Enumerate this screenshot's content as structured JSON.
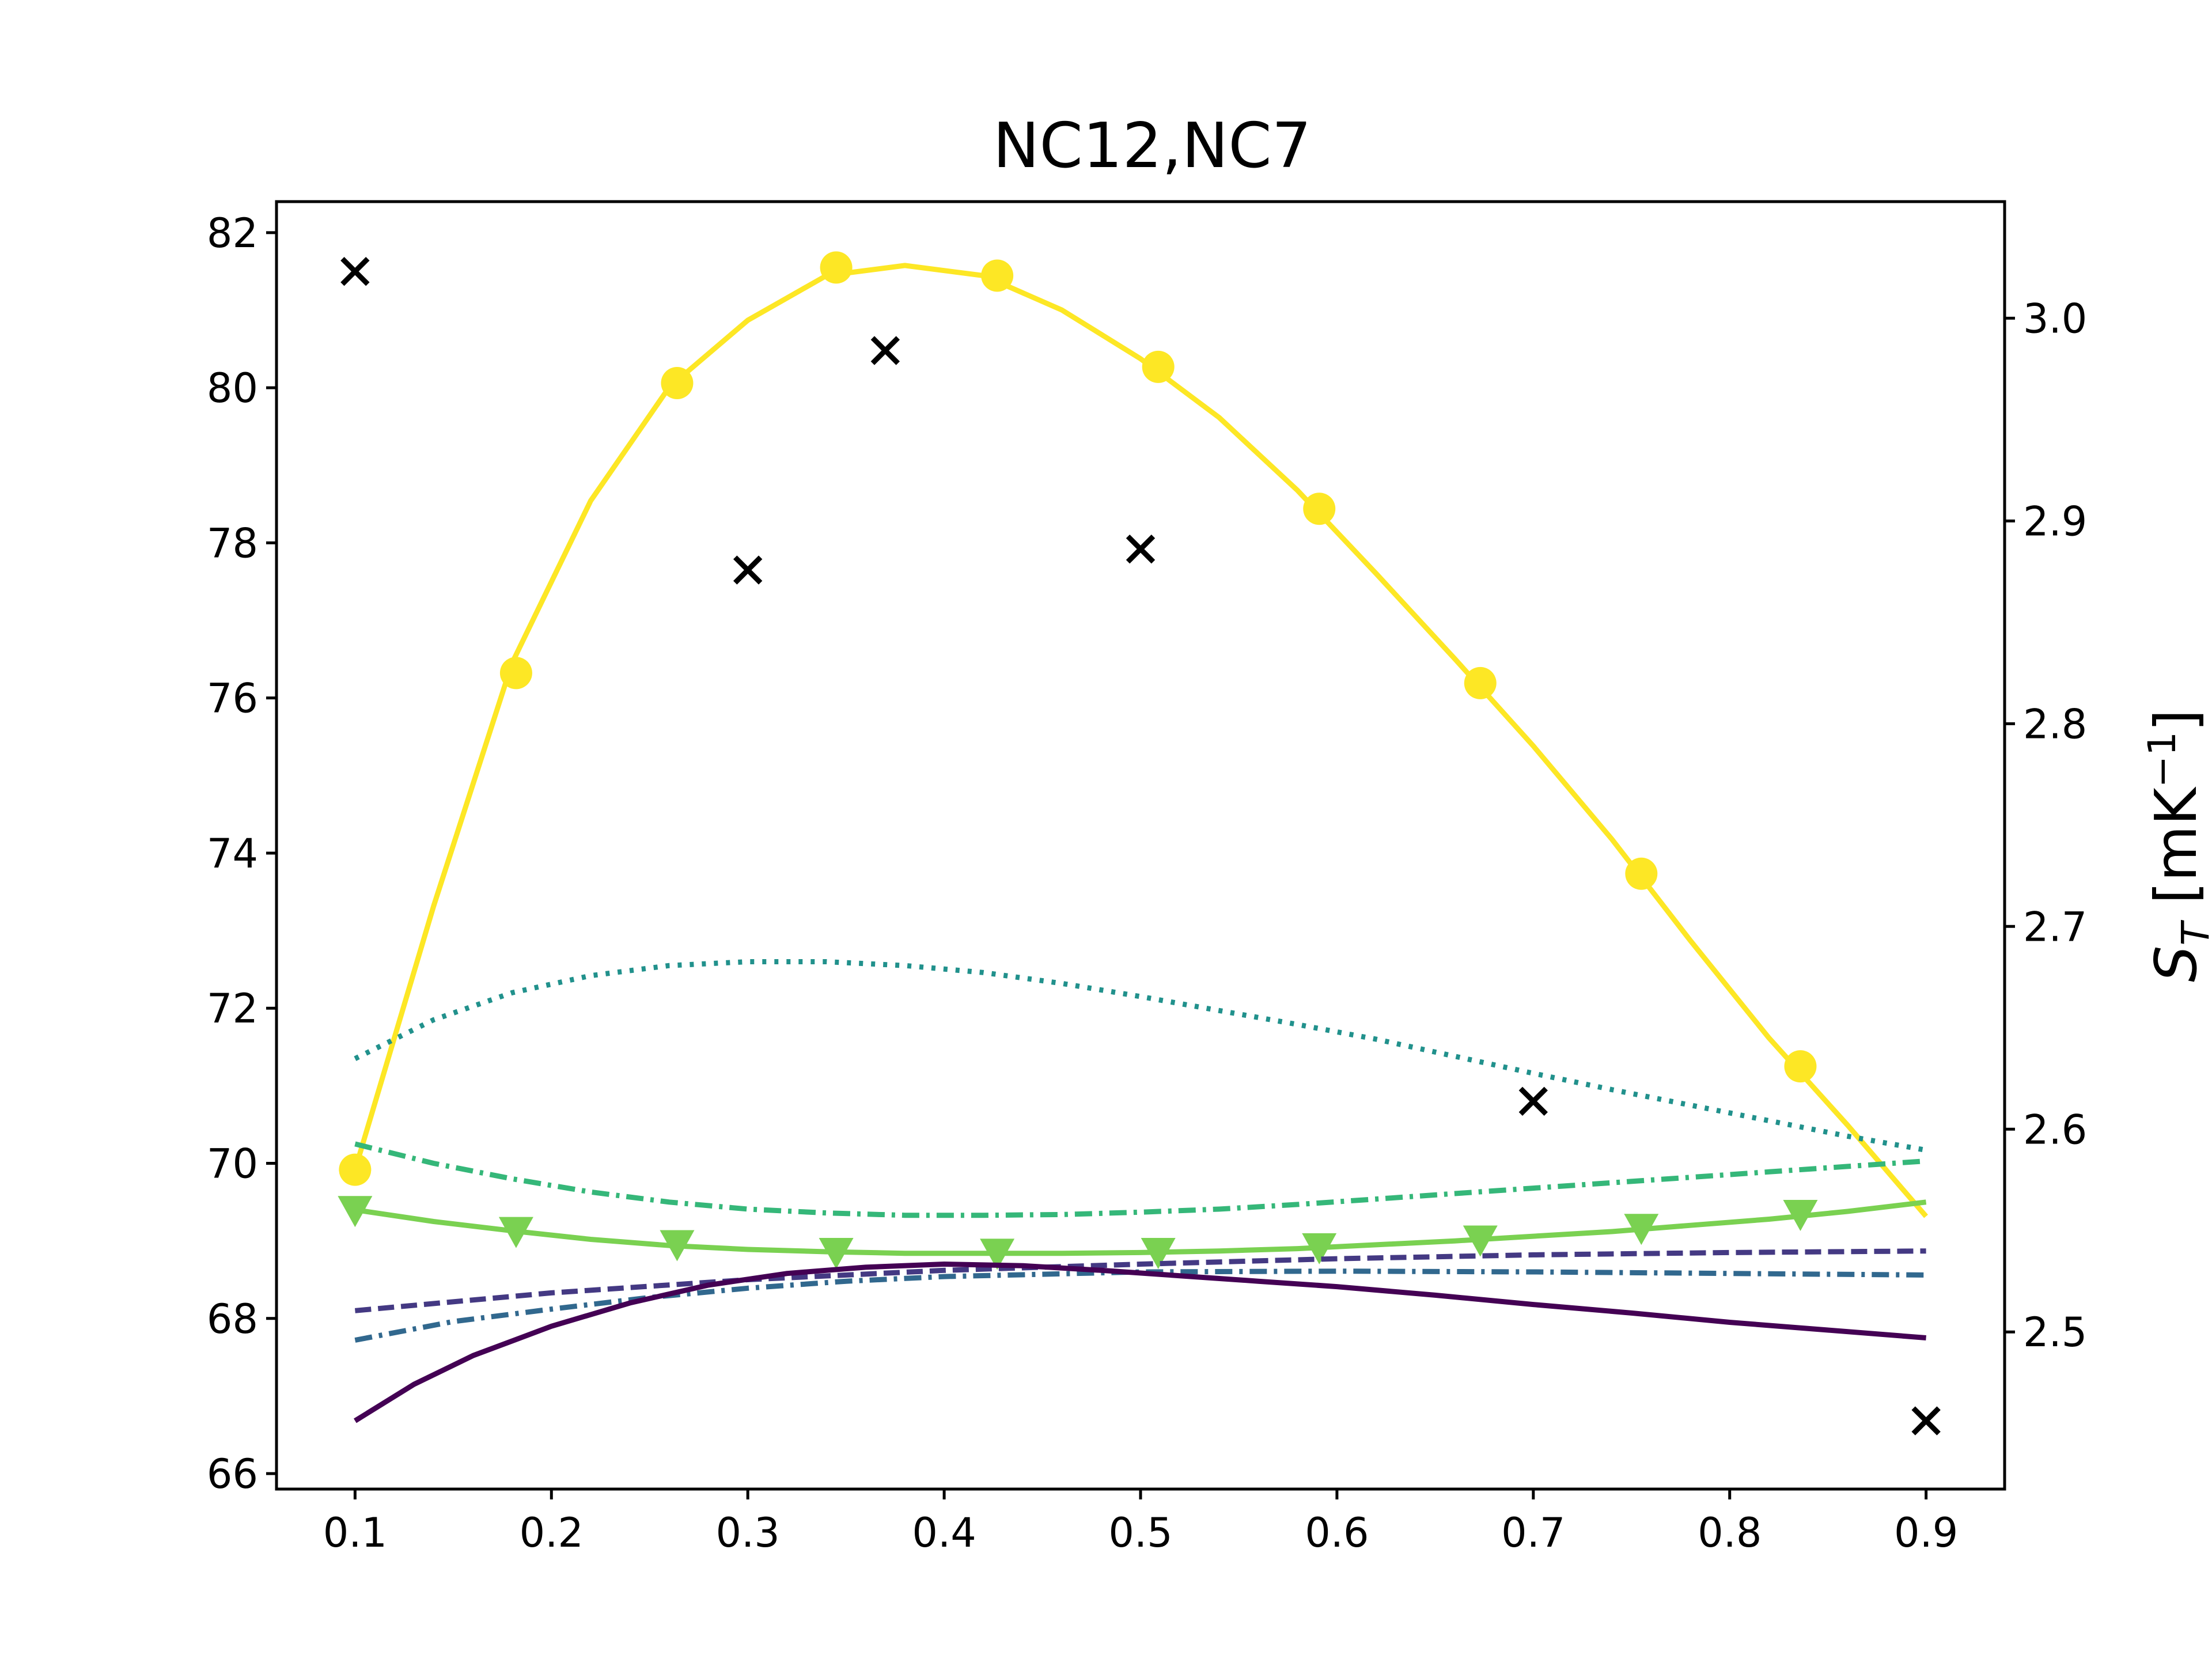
{
  "chart_data": {
    "type": "line",
    "title": "NC12,NC7",
    "xlabel": "",
    "ylabel": "",
    "ylabel_right": "S_T [mK^-1]",
    "ylabel_right_parts": {
      "main": "S",
      "sub": "T",
      "bracket_open": " [mK",
      "sup": "−1",
      "bracket_close": "]"
    },
    "xlim": [
      0.06,
      0.94
    ],
    "ylim": [
      65.8,
      82.4
    ],
    "ylim_right": [
      2.4225,
      3.0575
    ],
    "x_ticks": [
      "0.1",
      "0.2",
      "0.3",
      "0.4",
      "0.5",
      "0.6",
      "0.7",
      "0.8",
      "0.9"
    ],
    "x_tick_values": [
      0.1,
      0.2,
      0.3,
      0.4,
      0.5,
      0.6,
      0.7,
      0.8,
      0.9
    ],
    "y_ticks": [
      "66",
      "68",
      "70",
      "72",
      "74",
      "76",
      "78",
      "80",
      "82"
    ],
    "y_tick_values": [
      66,
      68,
      70,
      72,
      74,
      76,
      78,
      80,
      82
    ],
    "y2_ticks": [
      "2.5",
      "2.6",
      "2.7",
      "2.8",
      "2.9",
      "3.0"
    ],
    "y2_tick_values": [
      2.5,
      2.6,
      2.7,
      2.8,
      2.9,
      3.0
    ],
    "grid": false,
    "legend": "none",
    "series": [
      {
        "axis": "right",
        "color": "#fde725",
        "style": "solid",
        "marker": "circle",
        "x": [
          0.1,
          0.14,
          0.18,
          0.22,
          0.26,
          0.3,
          0.34,
          0.38,
          0.42,
          0.46,
          0.5,
          0.54,
          0.58,
          0.62,
          0.66,
          0.7,
          0.74,
          0.78,
          0.82,
          0.86,
          0.9
        ],
        "y": [
          2.58,
          2.71,
          2.83,
          2.91,
          2.966,
          2.999,
          3.021,
          3.026,
          3.021,
          3.004,
          2.98,
          2.951,
          2.915,
          2.874,
          2.832,
          2.789,
          2.743,
          2.693,
          2.645,
          2.602,
          2.557
        ],
        "marker_x": [
          0.1,
          0.182,
          0.264,
          0.345,
          0.427,
          0.509,
          0.591,
          0.673,
          0.755,
          0.836
        ],
        "marker_y": [
          2.58,
          2.825,
          2.968,
          3.025,
          3.021,
          2.976,
          2.906,
          2.82,
          2.726,
          2.631
        ]
      },
      {
        "axis": "left",
        "color": "#21918c",
        "style": "dotted",
        "marker": "none",
        "x": [
          0.1,
          0.14,
          0.18,
          0.22,
          0.26,
          0.3,
          0.34,
          0.38,
          0.42,
          0.46,
          0.5,
          0.54,
          0.58,
          0.62,
          0.66,
          0.7,
          0.74,
          0.78,
          0.82,
          0.86,
          0.9
        ],
        "y": [
          71.35,
          71.85,
          72.2,
          72.42,
          72.55,
          72.6,
          72.6,
          72.55,
          72.46,
          72.32,
          72.15,
          71.97,
          71.79,
          71.6,
          71.38,
          71.16,
          70.95,
          70.75,
          70.55,
          70.35,
          70.17
        ]
      },
      {
        "axis": "left",
        "color": "#35b779",
        "style": "dashdot",
        "marker": "none",
        "x": [
          0.1,
          0.14,
          0.18,
          0.22,
          0.26,
          0.3,
          0.34,
          0.38,
          0.42,
          0.46,
          0.5,
          0.54,
          0.58,
          0.62,
          0.66,
          0.7,
          0.74,
          0.78,
          0.82,
          0.86,
          0.9
        ],
        "y": [
          70.25,
          70.0,
          69.8,
          69.63,
          69.5,
          69.41,
          69.36,
          69.33,
          69.33,
          69.34,
          69.37,
          69.41,
          69.47,
          69.54,
          69.61,
          69.68,
          69.75,
          69.82,
          69.89,
          69.96,
          70.03
        ]
      },
      {
        "axis": "left",
        "color": "#7ad151",
        "style": "solid",
        "marker": "triangle-down",
        "x": [
          0.1,
          0.14,
          0.18,
          0.22,
          0.26,
          0.3,
          0.34,
          0.38,
          0.42,
          0.46,
          0.5,
          0.54,
          0.58,
          0.62,
          0.66,
          0.7,
          0.74,
          0.78,
          0.82,
          0.86,
          0.9
        ],
        "y": [
          69.4,
          69.25,
          69.13,
          69.02,
          68.94,
          68.89,
          68.86,
          68.84,
          68.84,
          68.84,
          68.85,
          68.87,
          68.9,
          68.95,
          69.0,
          69.06,
          69.12,
          69.2,
          69.28,
          69.38,
          69.5
        ],
        "marker_x": [
          0.1,
          0.182,
          0.264,
          0.345,
          0.427,
          0.509,
          0.591,
          0.673,
          0.755,
          0.836
        ],
        "marker_y": [
          69.4,
          69.13,
          68.96,
          68.86,
          68.85,
          68.86,
          68.92,
          69.02,
          69.17,
          69.35
        ]
      },
      {
        "axis": "left",
        "color": "#443983",
        "style": "dashed",
        "marker": "none",
        "x": [
          0.1,
          0.2,
          0.3,
          0.4,
          0.5,
          0.6,
          0.7,
          0.8,
          0.9
        ],
        "y": [
          68.1,
          68.33,
          68.5,
          68.62,
          68.7,
          68.77,
          68.82,
          68.85,
          68.87
        ]
      },
      {
        "axis": "left",
        "color": "#31688e",
        "style": "dashdot",
        "marker": "none",
        "x": [
          0.1,
          0.15,
          0.2,
          0.25,
          0.3,
          0.35,
          0.4,
          0.45,
          0.5,
          0.6,
          0.7,
          0.8,
          0.9
        ],
        "y": [
          67.72,
          67.96,
          68.12,
          68.27,
          68.39,
          68.48,
          68.54,
          68.57,
          68.6,
          68.61,
          68.6,
          68.58,
          68.56
        ]
      },
      {
        "axis": "left",
        "color": "#440154",
        "style": "solid",
        "marker": "none",
        "x": [
          0.1,
          0.13,
          0.16,
          0.2,
          0.24,
          0.28,
          0.32,
          0.36,
          0.4,
          0.44,
          0.48,
          0.52,
          0.56,
          0.6,
          0.65,
          0.7,
          0.75,
          0.8,
          0.85,
          0.9
        ],
        "y": [
          66.68,
          67.15,
          67.52,
          67.9,
          68.2,
          68.43,
          68.58,
          68.66,
          68.7,
          68.68,
          68.62,
          68.55,
          68.48,
          68.41,
          68.3,
          68.18,
          68.07,
          67.95,
          67.85,
          67.75
        ]
      },
      {
        "axis": "left",
        "color": "#000000",
        "style": "none",
        "marker": "x",
        "x": [
          0.1,
          0.3,
          0.37,
          0.5,
          0.7,
          0.9
        ],
        "y": [
          81.5,
          77.65,
          80.48,
          77.92,
          70.8,
          66.68
        ]
      }
    ]
  }
}
